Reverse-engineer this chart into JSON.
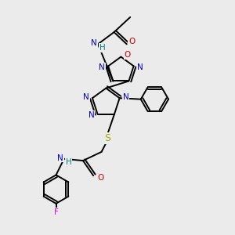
{
  "bg_color": "#ebebeb",
  "figsize": [
    3.0,
    3.0
  ],
  "dpi": 100,
  "colors": {
    "C": "#000000",
    "N": "#0000cc",
    "O": "#cc0000",
    "S": "#aaaa00",
    "F": "#ff00ff",
    "H": "#008888",
    "bond": "#000000"
  },
  "lw": 1.4,
  "fs": 7.5
}
